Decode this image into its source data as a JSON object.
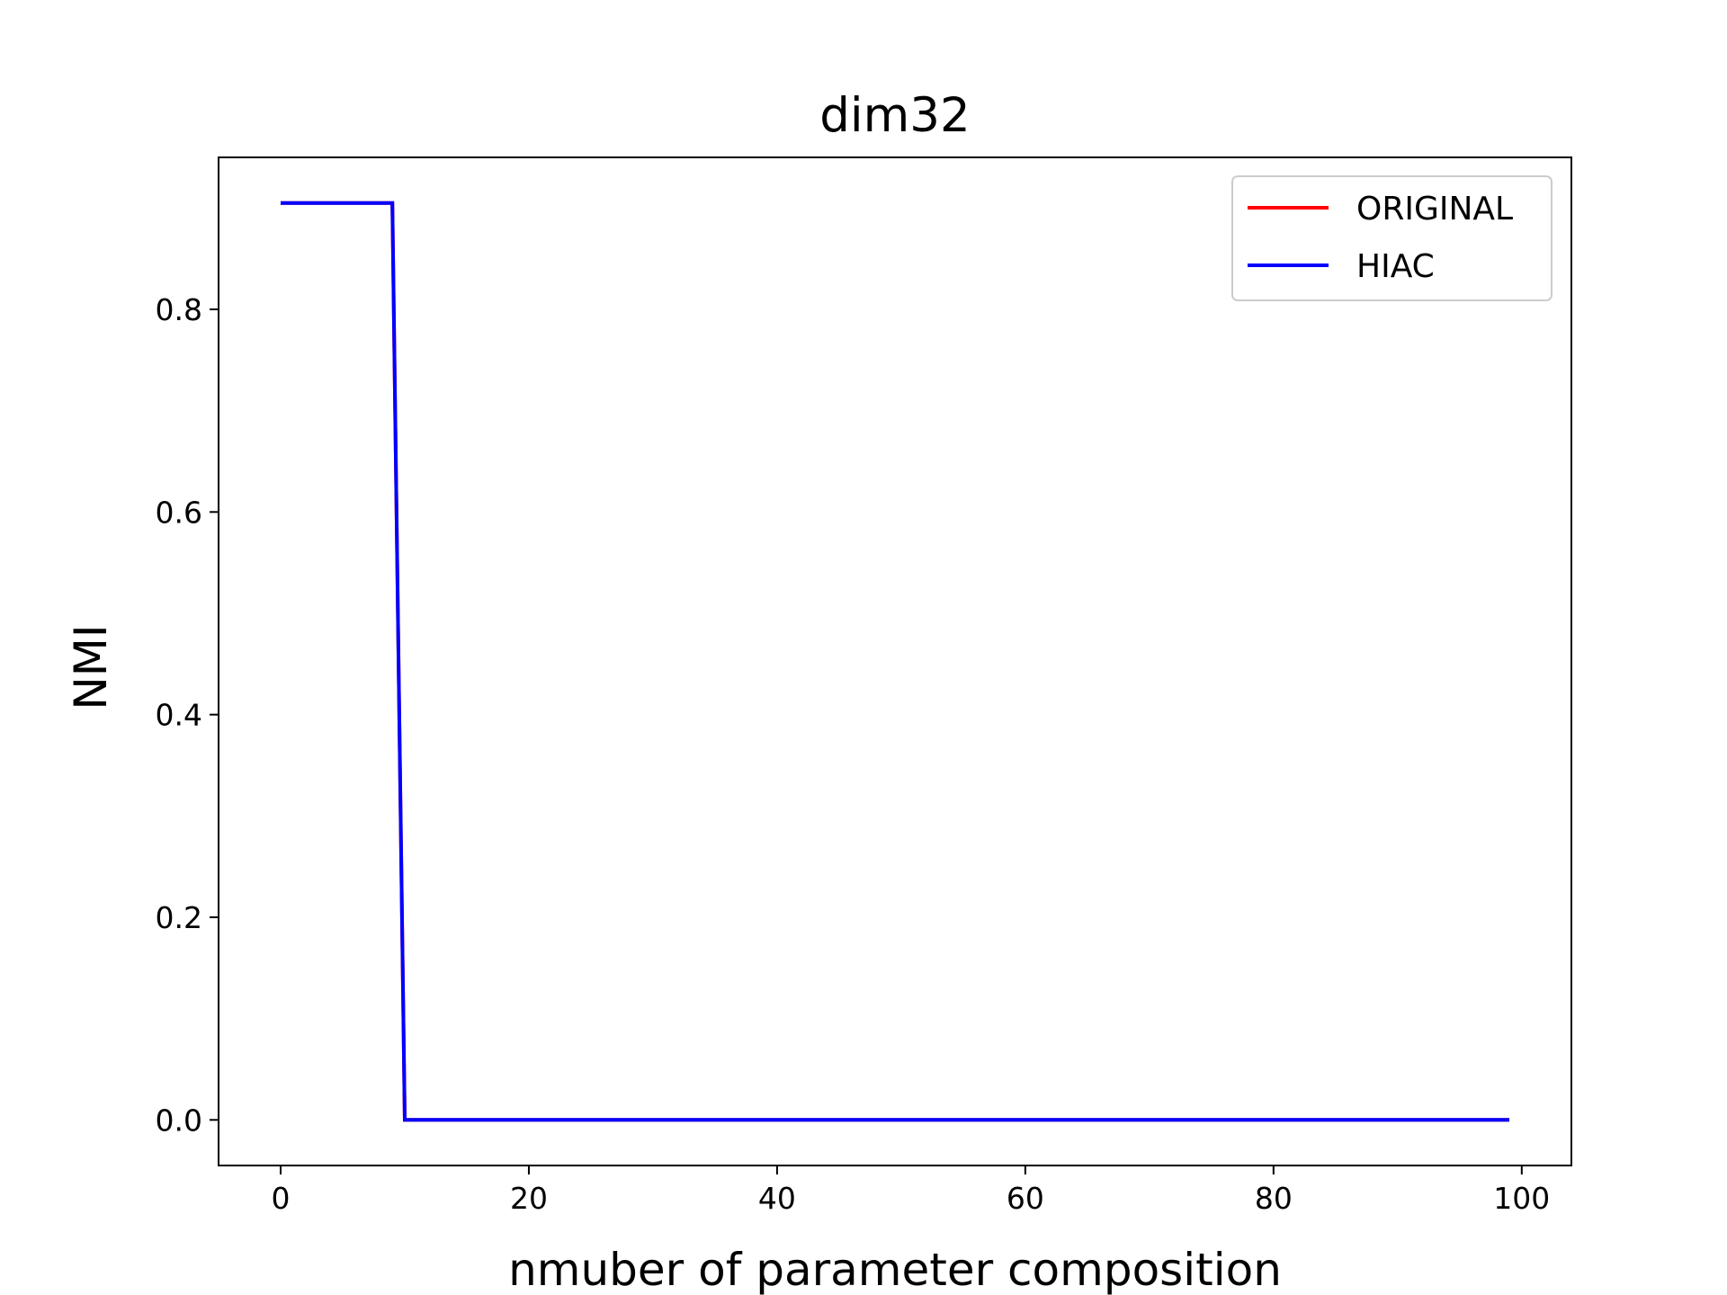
{
  "chart_data": {
    "type": "line",
    "title": "dim32",
    "xlabel": "nmuber of parameter composition",
    "ylabel": "NMI",
    "xlim": [
      -5,
      104
    ],
    "ylim": [
      -0.045,
      0.95
    ],
    "xticks": [
      0,
      20,
      40,
      60,
      80,
      100
    ],
    "xtick_labels": [
      "0",
      "20",
      "40",
      "60",
      "80",
      "100"
    ],
    "yticks": [
      0.0,
      0.2,
      0.4,
      0.6,
      0.8
    ],
    "ytick_labels": [
      "0.0",
      "0.2",
      "0.4",
      "0.6",
      "0.8"
    ],
    "grid": false,
    "legend_position": "top-right",
    "series": [
      {
        "name": "ORIGINAL",
        "color": "#ff0000",
        "points": [
          [
            0,
            0.905
          ],
          [
            9,
            0.905
          ],
          [
            10,
            0.0
          ],
          [
            99,
            0.0
          ]
        ]
      },
      {
        "name": "HIAC",
        "color": "#0000ff",
        "points": [
          [
            0,
            0.905
          ],
          [
            9,
            0.905
          ],
          [
            10,
            0.0
          ],
          [
            99,
            0.0
          ]
        ]
      }
    ]
  }
}
